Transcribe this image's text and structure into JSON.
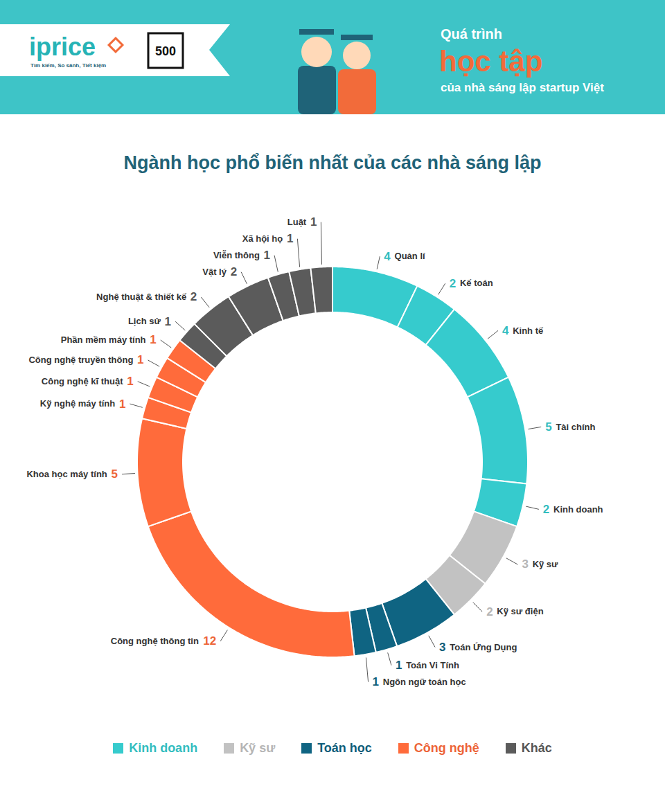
{
  "header": {
    "brand": "iprice",
    "brand_tagline": "Tìm kiếm, So sánh, Tiết kiệm",
    "partner": "500",
    "title_top": "Quá trình",
    "title_main": "học tập",
    "title_bottom": "của nhà sáng lập startup Việt"
  },
  "chart_data": {
    "type": "pie",
    "title": "Ngành học phổ biến nhất của các nhà sáng lập",
    "categories": [
      "Quản lí",
      "Kế toán",
      "Kinh tế",
      "Tài chính",
      "Kinh doanh",
      "Kỹ sư",
      "Kỹ sư điện",
      "Toán Ứng Dụng",
      "Toán Vi Tính",
      "Ngôn ngữ toán học",
      "Công nghệ thông tin",
      "Khoa học máy tính",
      "Kỹ nghệ máy tính",
      "Công nghệ kĩ thuật",
      "Công nghệ truyền thông",
      "Phần mềm máy tính",
      "Lịch sử",
      "Nghệ thuật & thiết kế",
      "Vật lý",
      "Viễn thông",
      "Xã hội họ",
      "Luật"
    ],
    "values": [
      4,
      2,
      4,
      5,
      2,
      3,
      2,
      3,
      1,
      1,
      12,
      5,
      1,
      1,
      1,
      1,
      1,
      2,
      2,
      1,
      1,
      1
    ],
    "colors": [
      "#36cbcd",
      "#36cbcd",
      "#36cbcd",
      "#36cbcd",
      "#36cbcd",
      "#c2c2c2",
      "#c2c2c2",
      "#0f6482",
      "#0f6482",
      "#0f6482",
      "#ff6b3b",
      "#ff6b3b",
      "#ff6b3b",
      "#ff6b3b",
      "#ff6b3b",
      "#ff6b3b",
      "#5b5b5b",
      "#5b5b5b",
      "#5b5b5b",
      "#5b5b5b",
      "#5b5b5b",
      "#5b5b5b"
    ],
    "groups": [
      {
        "name": "Kinh doanh",
        "color": "#36cbcd"
      },
      {
        "name": "Kỹ sư",
        "color": "#c2c2c2"
      },
      {
        "name": "Toán học",
        "color": "#0f6482"
      },
      {
        "name": "Công nghệ",
        "color": "#ff6b3b"
      },
      {
        "name": "Khác",
        "color": "#5b5b5b"
      }
    ],
    "legend": "bottom",
    "data_labels": true
  }
}
